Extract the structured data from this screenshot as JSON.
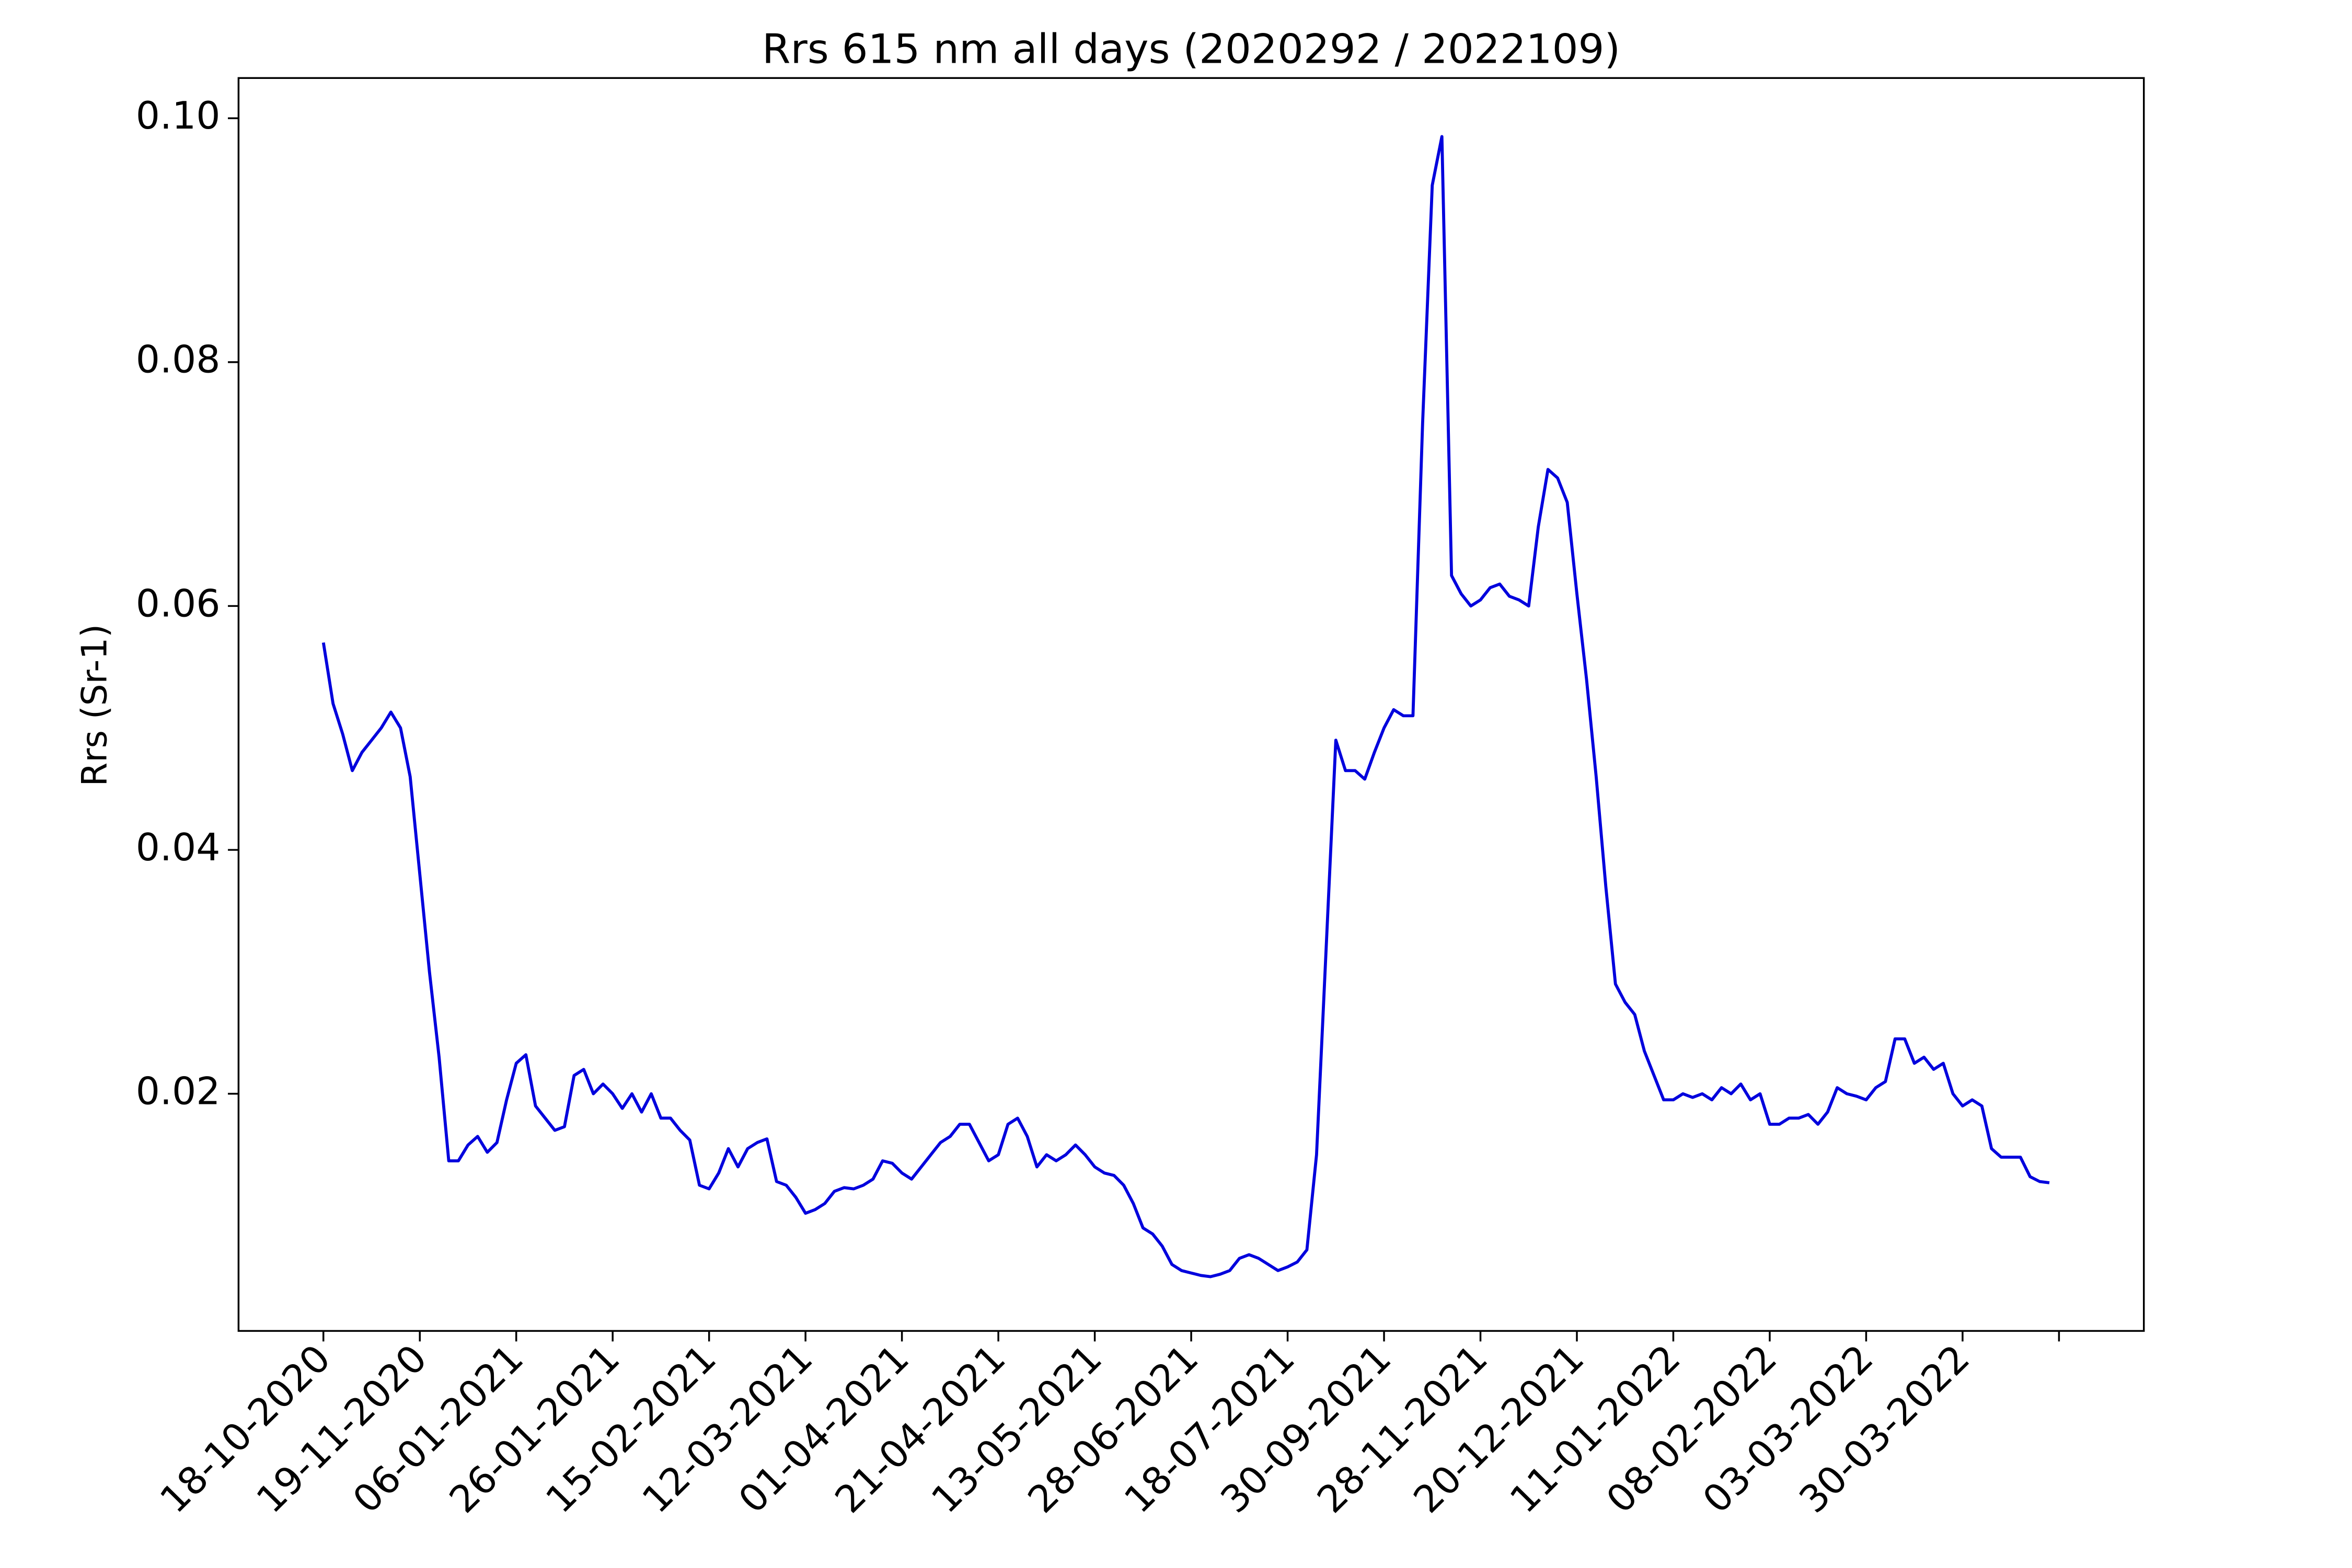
{
  "chart_data": {
    "type": "line",
    "title": "Rrs 615 nm all days (2020292 / 2022109)",
    "y_label": "Rrs (Sr-1)",
    "categories": [
      "18-10-2020",
      null,
      null,
      null,
      null,
      null,
      null,
      null,
      null,
      null,
      "19-11-2020",
      null,
      null,
      null,
      null,
      null,
      null,
      null,
      null,
      null,
      "06-01-2021",
      null,
      null,
      null,
      null,
      null,
      null,
      null,
      null,
      null,
      "26-01-2021",
      null,
      null,
      null,
      null,
      null,
      null,
      null,
      null,
      null,
      "15-02-2021",
      null,
      null,
      null,
      null,
      null,
      null,
      null,
      null,
      null,
      "12-03-2021",
      null,
      null,
      null,
      null,
      null,
      null,
      null,
      null,
      null,
      "01-04-2021",
      null,
      null,
      null,
      null,
      null,
      null,
      null,
      null,
      null,
      "21-04-2021",
      null,
      null,
      null,
      null,
      null,
      null,
      null,
      null,
      null,
      "13-05-2021",
      null,
      null,
      null,
      null,
      null,
      null,
      null,
      null,
      null,
      "28-06-2021",
      null,
      null,
      null,
      null,
      null,
      null,
      null,
      null,
      null,
      "18-07-2021",
      null,
      null,
      null,
      null,
      null,
      null,
      null,
      null,
      null,
      "30-09-2021",
      null,
      null,
      null,
      null,
      null,
      null,
      null,
      null,
      null,
      "28-11-2021",
      null,
      null,
      null,
      null,
      null,
      null,
      null,
      null,
      null,
      "20-12-2021",
      null,
      null,
      null,
      null,
      null,
      null,
      null,
      null,
      null,
      "11-01-2022",
      null,
      null,
      null,
      null,
      null,
      null,
      null,
      null,
      null,
      "08-02-2022",
      null,
      null,
      null,
      null,
      null,
      null,
      null,
      null,
      null,
      "03-03-2022",
      null,
      null,
      null,
      null,
      null,
      null,
      null,
      null,
      null,
      "30-03-2022",
      null,
      null,
      null,
      null,
      null,
      null,
      null,
      null,
      null,
      null
    ],
    "values": [
      0.057,
      0.052,
      0.0495,
      0.0465,
      0.048,
      0.049,
      0.05,
      0.0513,
      0.05,
      0.046,
      0.038,
      0.03,
      0.023,
      0.0145,
      0.0145,
      0.0158,
      0.0165,
      0.0152,
      0.016,
      0.0195,
      0.0225,
      0.0232,
      0.019,
      0.018,
      0.017,
      0.0173,
      0.0215,
      0.022,
      0.02,
      0.0208,
      0.02,
      0.0188,
      0.02,
      0.0185,
      0.02,
      0.018,
      0.018,
      0.017,
      0.0162,
      0.0125,
      0.0122,
      0.0135,
      0.0155,
      0.014,
      0.0155,
      0.016,
      0.0163,
      0.0128,
      0.0125,
      0.0115,
      0.0102,
      0.0105,
      0.011,
      0.012,
      0.0123,
      0.0122,
      0.0125,
      0.013,
      0.0145,
      0.0143,
      0.0135,
      0.013,
      0.014,
      0.015,
      0.016,
      0.0165,
      0.0175,
      0.0175,
      0.016,
      0.0145,
      0.015,
      0.0175,
      0.018,
      0.0165,
      0.014,
      0.015,
      0.0145,
      0.015,
      0.0158,
      0.015,
      0.014,
      0.0135,
      0.0133,
      0.0125,
      0.011,
      0.009,
      0.0085,
      0.0075,
      0.006,
      0.0055,
      0.0053,
      0.0051,
      0.005,
      0.0052,
      0.0055,
      0.0065,
      0.0068,
      0.0065,
      0.006,
      0.0055,
      0.0058,
      0.0062,
      0.0072,
      0.015,
      0.032,
      0.049,
      0.0465,
      0.0465,
      0.0458,
      0.048,
      0.05,
      0.0515,
      0.051,
      0.051,
      0.075,
      0.0945,
      0.0985,
      0.0625,
      0.061,
      0.06,
      0.0605,
      0.0615,
      0.0618,
      0.0608,
      0.0605,
      0.06,
      0.0665,
      0.0712,
      0.0705,
      0.0685,
      0.061,
      0.054,
      0.046,
      0.037,
      0.029,
      0.0275,
      0.0265,
      0.0235,
      0.0215,
      0.0195,
      0.0195,
      0.02,
      0.0197,
      0.02,
      0.0195,
      0.0205,
      0.02,
      0.0208,
      0.0195,
      0.02,
      0.0175,
      0.0175,
      0.018,
      0.018,
      0.0183,
      0.0175,
      0.0185,
      0.0205,
      0.02,
      0.0198,
      0.0195,
      0.0205,
      0.021,
      0.0245,
      0.0245,
      0.0225,
      0.023,
      0.022,
      0.0225,
      0.02,
      0.019,
      0.0195,
      0.019,
      0.0155,
      0.0148,
      0.0148,
      0.0148,
      0.0132,
      0.0128,
      0.0127,
      null
    ],
    "color": "#0000dd",
    "ylim": [
      0.00055,
      0.1033
    ],
    "yticks": [
      0.02,
      0.04,
      0.06,
      0.08,
      {
        "value": 0.1,
        "label": "0.10"
      }
    ]
  }
}
